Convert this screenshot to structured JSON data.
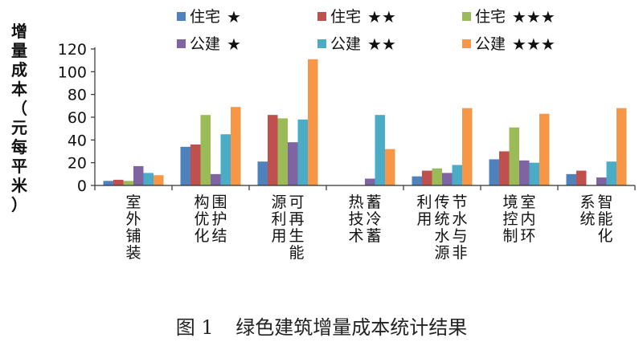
{
  "chart_data": {
    "type": "bar",
    "ylabel": "增量成本（元每平米）",
    "ylim": [
      0,
      120
    ],
    "yticks": [
      0,
      20,
      40,
      60,
      80,
      100,
      120
    ],
    "grid": false,
    "legend_position": "top",
    "categories": [
      [
        "室",
        "外",
        "铺",
        "装"
      ],
      [
        "围",
        "护",
        "结",
        "构",
        "优",
        "化"
      ],
      [
        "可",
        "再",
        "生",
        "能",
        "源",
        "利",
        "用"
      ],
      [
        "蓄",
        "冷",
        "蓄",
        "热",
        "技",
        "术"
      ],
      [
        "节",
        "水",
        "与",
        "非",
        "传",
        "统",
        "水",
        "源",
        "利",
        "用"
      ],
      [
        "室",
        "内",
        "环",
        "境",
        "控",
        "制"
      ],
      [
        "智",
        "能",
        "化",
        "系",
        "统"
      ]
    ],
    "series": [
      {
        "name": "住宅",
        "stars": "★",
        "color": "#4f81bd",
        "values": [
          4,
          34,
          21,
          0,
          8,
          23,
          10
        ]
      },
      {
        "name": "住宅",
        "stars": "★★",
        "color": "#c0504d",
        "values": [
          5,
          36,
          62,
          0,
          13,
          30,
          13
        ]
      },
      {
        "name": "住宅",
        "stars": "★★★",
        "color": "#9bbb59",
        "values": [
          4,
          62,
          59,
          0,
          15,
          51,
          0
        ]
      },
      {
        "name": "公建",
        "stars": "★",
        "color": "#8064a2",
        "values": [
          17,
          10,
          38,
          6,
          11,
          22,
          7
        ]
      },
      {
        "name": "公建",
        "stars": "★★",
        "color": "#4bacc6",
        "values": [
          11,
          45,
          58,
          62,
          18,
          20,
          21
        ]
      },
      {
        "name": "公建",
        "stars": "★★★",
        "color": "#f79646",
        "values": [
          9,
          69,
          111,
          32,
          68,
          63,
          68
        ]
      }
    ]
  },
  "caption": {
    "figure_no": "图 1",
    "title": "绿色建筑增量成本统计结果"
  }
}
